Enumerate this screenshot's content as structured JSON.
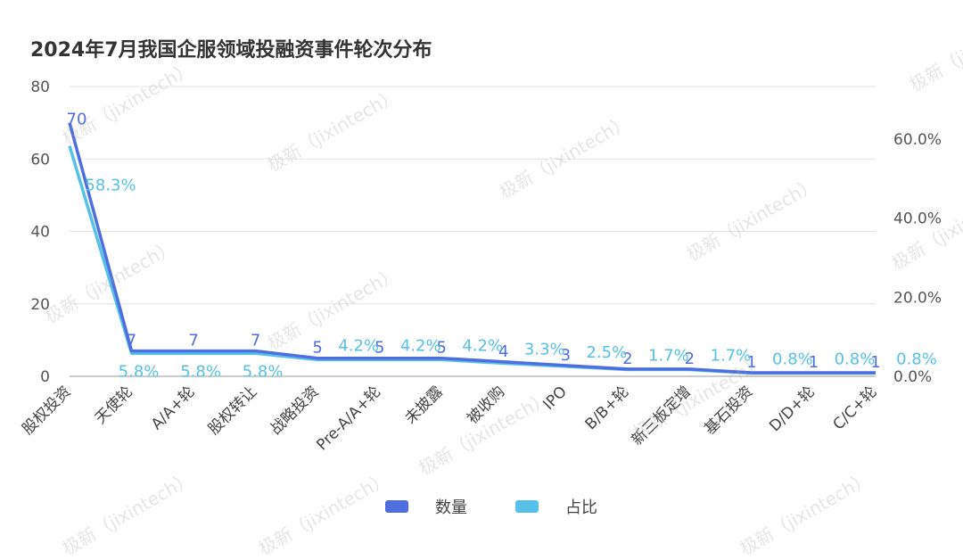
{
  "title": "2024年7月我国企服领域投融资事件轮次分布",
  "watermark": "极新（jixintech）",
  "colors": {
    "count": "#4f6fe0",
    "ratio": "#56c1e8",
    "grid": "#e3e3e3",
    "axis": "#555555"
  },
  "legend": [
    {
      "label": "数量",
      "color": "#4f6fe0"
    },
    {
      "label": "占比",
      "color": "#56c1e8"
    }
  ],
  "chart_data": {
    "type": "line",
    "title": "2024年7月我国企服领域投融资事件轮次分布",
    "categories": [
      "股权投资",
      "天使轮",
      "A/A+轮",
      "股权转让",
      "战略投资",
      "Pre-A/A+轮",
      "未披露",
      "被收购",
      "IPO",
      "B/B+轮",
      "新三板定增",
      "基石投资",
      "D/D+轮",
      "C/C+轮"
    ],
    "series": [
      {
        "name": "数量",
        "axis": "left",
        "values": [
          70,
          7,
          7,
          7,
          5,
          5,
          5,
          4,
          3,
          2,
          2,
          1,
          1,
          1
        ],
        "labels": [
          "70",
          "7",
          "7",
          "7",
          "5",
          "5",
          "5",
          "4",
          "3",
          "2",
          "2",
          "1",
          "1",
          "1"
        ]
      },
      {
        "name": "占比",
        "axis": "right",
        "values": [
          58.3,
          5.8,
          5.8,
          5.8,
          4.2,
          4.2,
          4.2,
          3.3,
          2.5,
          1.7,
          1.7,
          0.8,
          0.8,
          0.8
        ],
        "labels": [
          "58.3%",
          "5.8%",
          "5.8%",
          "5.8%",
          "4.2%",
          "4.2%",
          "4.2%",
          "3.3%",
          "2.5%",
          "1.7%",
          "1.7%",
          "0.8%",
          "0.8%",
          "0.8%"
        ]
      }
    ],
    "y_left": {
      "min": 0,
      "max": 80,
      "ticks": [
        "0",
        "20",
        "40",
        "60",
        "80"
      ],
      "values": [
        0,
        20,
        40,
        60,
        80
      ]
    },
    "y_right": {
      "min": 0,
      "max": 73.33,
      "ticks": [
        "0.0%",
        "20.0%",
        "40.0%",
        "60.0%"
      ],
      "values": [
        0,
        20,
        40,
        60
      ]
    },
    "grid": true,
    "legend_position": "bottom-center"
  }
}
